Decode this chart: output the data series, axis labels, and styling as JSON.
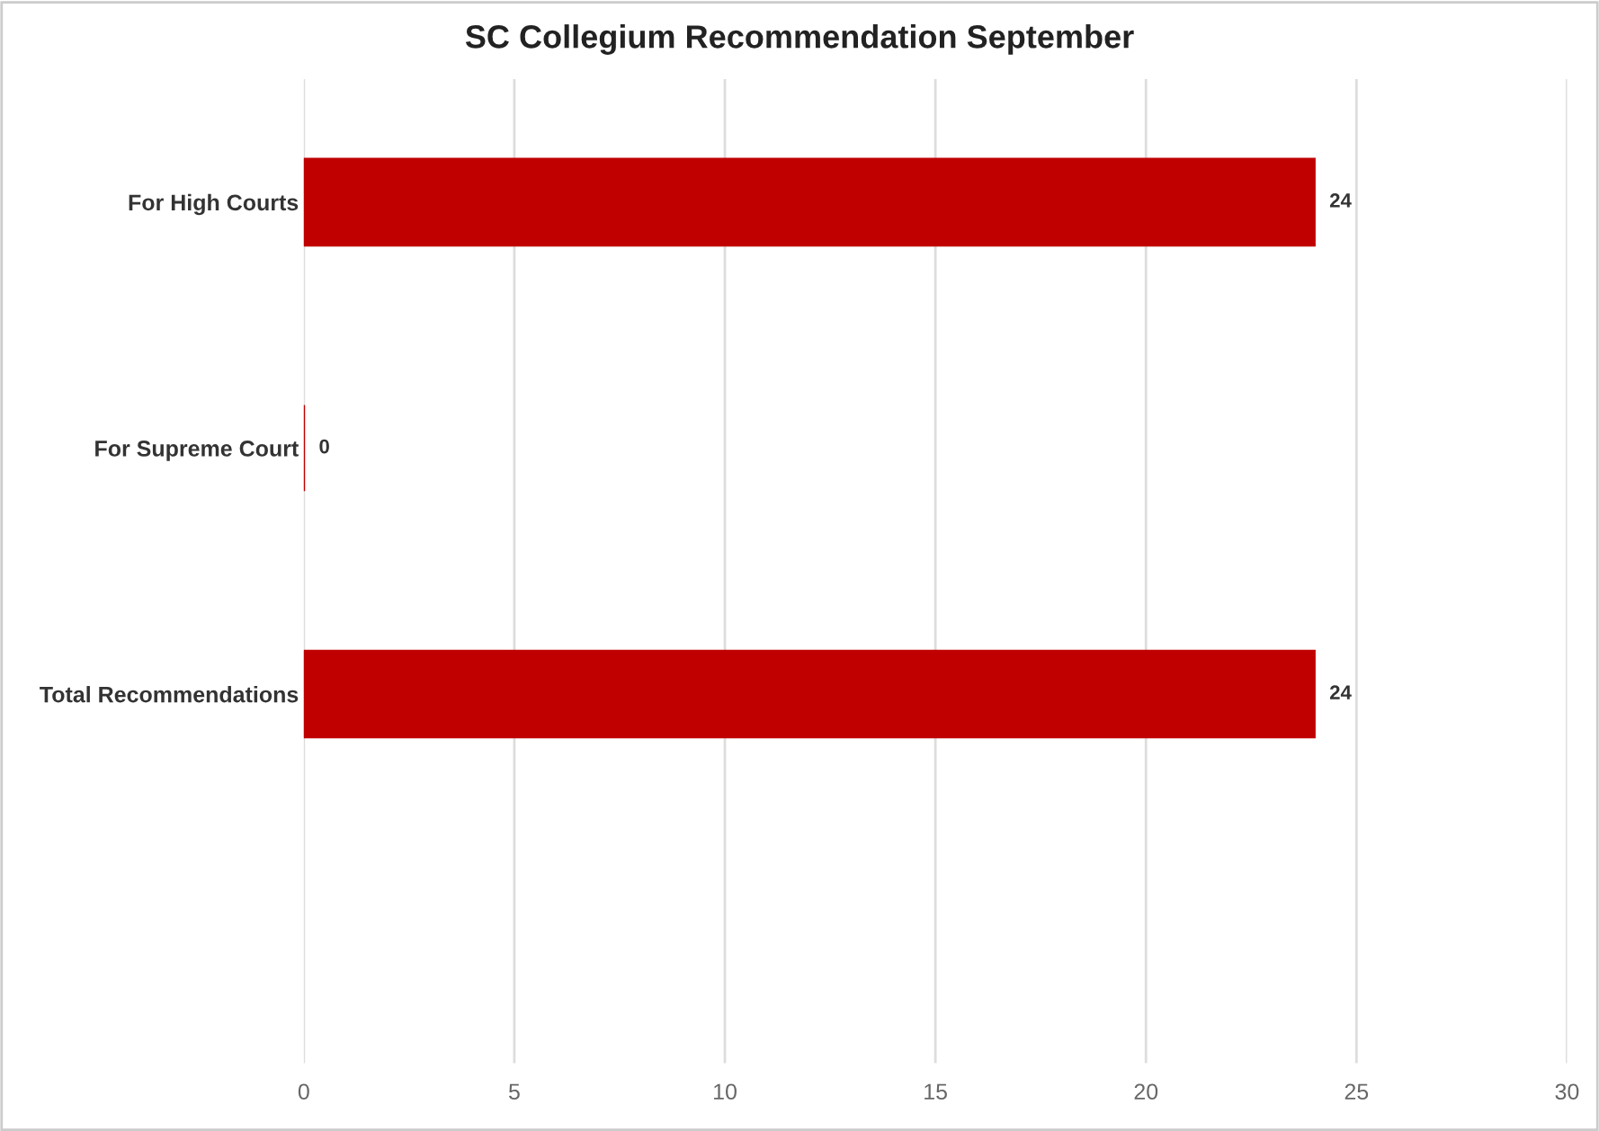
{
  "chart_data": {
    "type": "bar",
    "orientation": "horizontal",
    "title": "SC Collegium Recommendation September",
    "categories": [
      "For High Courts",
      "For Supreme Court",
      "Total Recommendations"
    ],
    "values": [
      24,
      0,
      24
    ],
    "color": "#c00000",
    "xlim": [
      0,
      30
    ],
    "xticks": [
      0,
      5,
      10,
      15,
      20,
      25,
      30
    ],
    "grid": "x",
    "data_labels": true
  }
}
